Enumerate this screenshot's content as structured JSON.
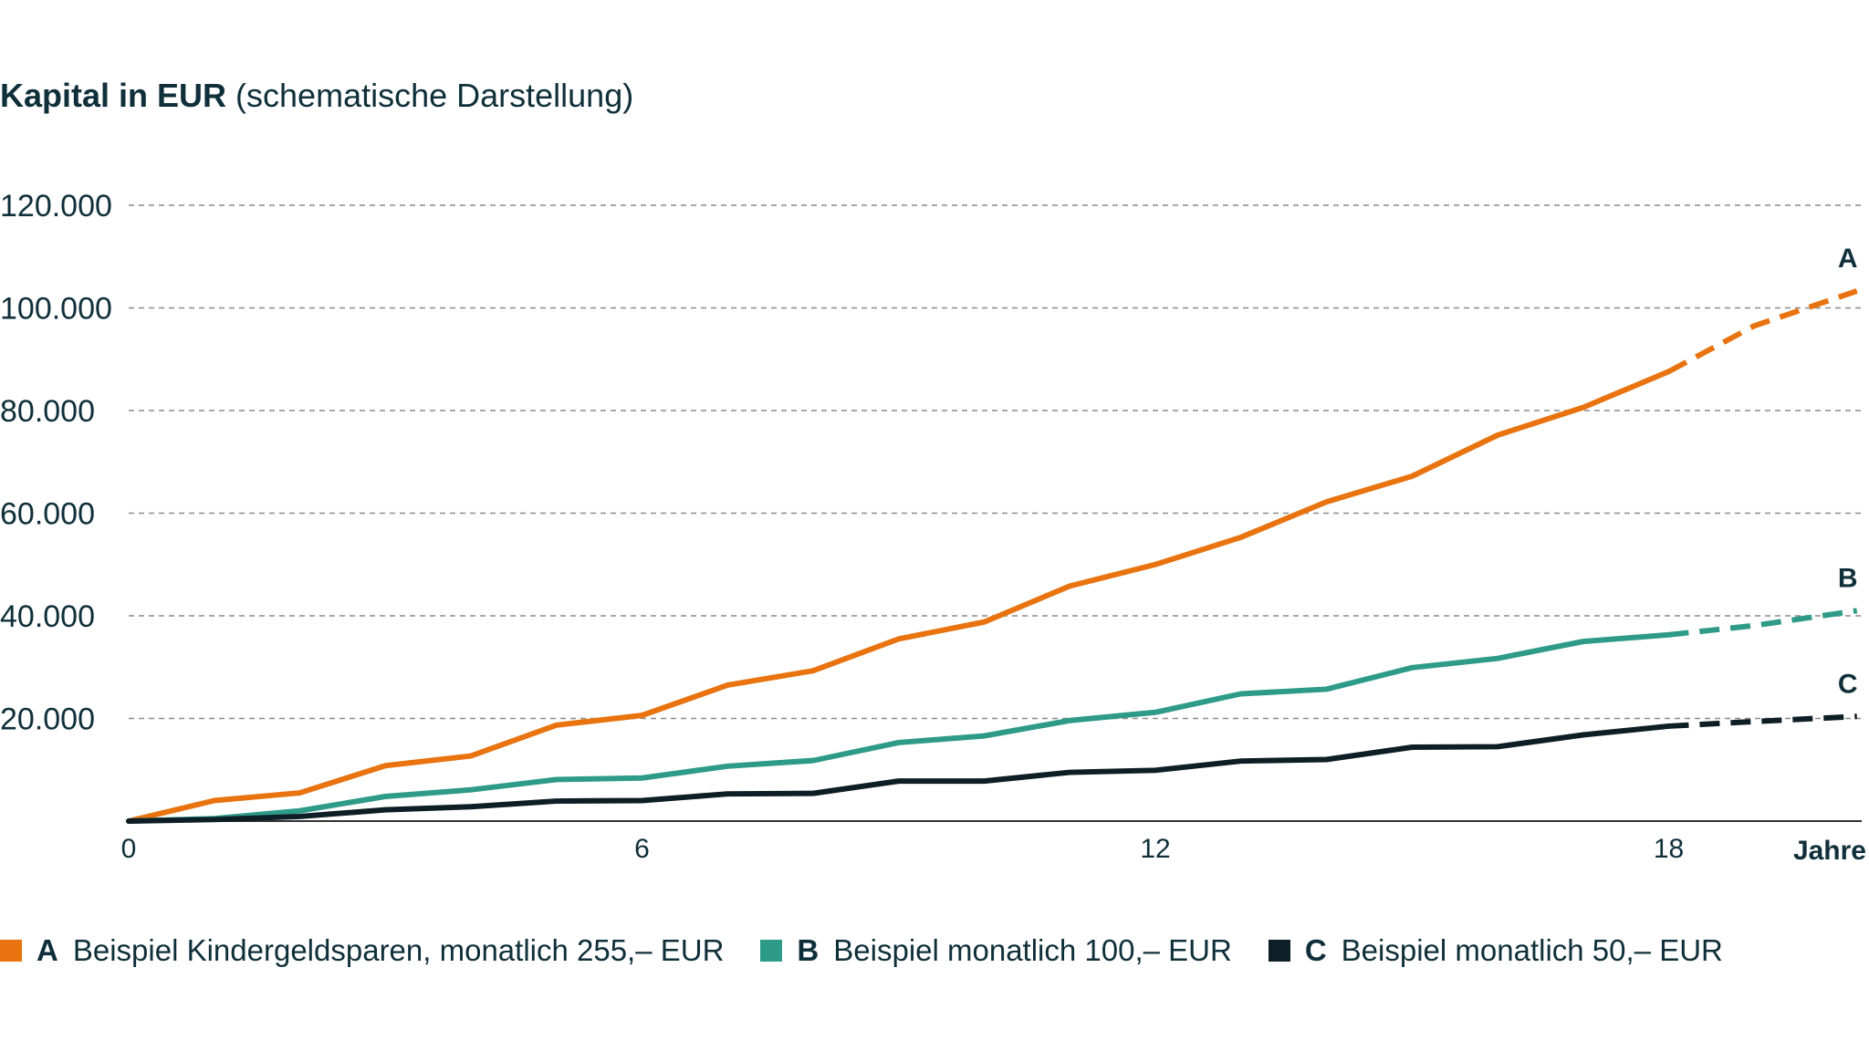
{
  "title": {
    "bold": "Kapital in EUR",
    "regular": "(schematische Darstellung)"
  },
  "colors": {
    "A": "#e8730f",
    "B": "#2e9a88",
    "C": "#0e1e26",
    "grid": "#8a8a8a",
    "axis": "#333333",
    "text": "#0f2f3a"
  },
  "chart_data": {
    "type": "line",
    "title": "Kapital in EUR (schematische Darstellung)",
    "xlabel": "Jahre",
    "ylabel": "",
    "xlim": [
      0,
      20.3
    ],
    "ylim": [
      0,
      120000
    ],
    "x_ticks": [
      0,
      6,
      12,
      18
    ],
    "x_tick_labels": [
      "0",
      "6",
      "12",
      "18"
    ],
    "y_ticks": [
      20000,
      40000,
      60000,
      80000,
      100000,
      120000
    ],
    "y_tick_labels": [
      "20.000",
      "40.000",
      "60.000",
      "80.000",
      "100.000",
      "120.000"
    ],
    "grid": "horizontal dashed",
    "legend_position": "bottom",
    "series": [
      {
        "key": "A",
        "letter": "A",
        "name": "Beispiel Kindergeldsparen, monatlich 255,– EUR",
        "color": "#e8730f",
        "solid": [
          [
            0,
            0
          ],
          [
            1,
            4000
          ],
          [
            2,
            5500
          ],
          [
            3,
            10800
          ],
          [
            4,
            12700
          ],
          [
            5,
            18700
          ],
          [
            6,
            20600
          ],
          [
            7,
            26500
          ],
          [
            8,
            29300
          ],
          [
            9,
            35500
          ],
          [
            10,
            38800
          ],
          [
            11,
            45800
          ],
          [
            12,
            50000
          ],
          [
            13,
            55300
          ],
          [
            14,
            62200
          ],
          [
            15,
            67200
          ],
          [
            16,
            75200
          ],
          [
            17,
            80600
          ],
          [
            18,
            87600
          ]
        ],
        "projected": [
          [
            18,
            87600
          ],
          [
            19,
            96500
          ],
          [
            20.2,
            103300
          ]
        ]
      },
      {
        "key": "B",
        "letter": "B",
        "name": "Beispiel monatlich 100,– EUR",
        "color": "#2e9a88",
        "solid": [
          [
            0,
            0
          ],
          [
            1,
            500
          ],
          [
            2,
            2000
          ],
          [
            3,
            4800
          ],
          [
            4,
            6100
          ],
          [
            5,
            8100
          ],
          [
            6,
            8400
          ],
          [
            7,
            10700
          ],
          [
            8,
            11800
          ],
          [
            9,
            15300
          ],
          [
            10,
            16600
          ],
          [
            11,
            19600
          ],
          [
            12,
            21200
          ],
          [
            13,
            24800
          ],
          [
            14,
            25700
          ],
          [
            15,
            29900
          ],
          [
            16,
            31700
          ],
          [
            17,
            35000
          ],
          [
            18,
            36300
          ]
        ],
        "projected": [
          [
            18,
            36300
          ],
          [
            19,
            38100
          ],
          [
            20.2,
            41000
          ]
        ]
      },
      {
        "key": "C",
        "letter": "C",
        "name": "Beispiel monatlich 50,– EUR",
        "color": "#0e1e26",
        "solid": [
          [
            0,
            0
          ],
          [
            1,
            300
          ],
          [
            2,
            900
          ],
          [
            3,
            2200
          ],
          [
            4,
            2800
          ],
          [
            5,
            3900
          ],
          [
            6,
            4000
          ],
          [
            7,
            5300
          ],
          [
            8,
            5400
          ],
          [
            9,
            7800
          ],
          [
            10,
            7800
          ],
          [
            11,
            9500
          ],
          [
            12,
            9900
          ],
          [
            13,
            11700
          ],
          [
            14,
            12000
          ],
          [
            15,
            14400
          ],
          [
            16,
            14500
          ],
          [
            17,
            16800
          ],
          [
            18,
            18500
          ]
        ],
        "projected": [
          [
            18,
            18500
          ],
          [
            19,
            19400
          ],
          [
            20.2,
            20400
          ]
        ]
      }
    ],
    "annotations": [
      {
        "series": "A",
        "text": "A"
      },
      {
        "series": "B",
        "text": "B"
      },
      {
        "series": "C",
        "text": "C"
      }
    ]
  },
  "legend": [
    {
      "key": "A",
      "letter": "A",
      "label": "Beispiel Kindergeldsparen, monatlich 255,– EUR"
    },
    {
      "key": "B",
      "letter": "B",
      "label": "Beispiel monatlich 100,– EUR"
    },
    {
      "key": "C",
      "letter": "C",
      "label": "Beispiel monatlich 50,– EUR"
    }
  ]
}
